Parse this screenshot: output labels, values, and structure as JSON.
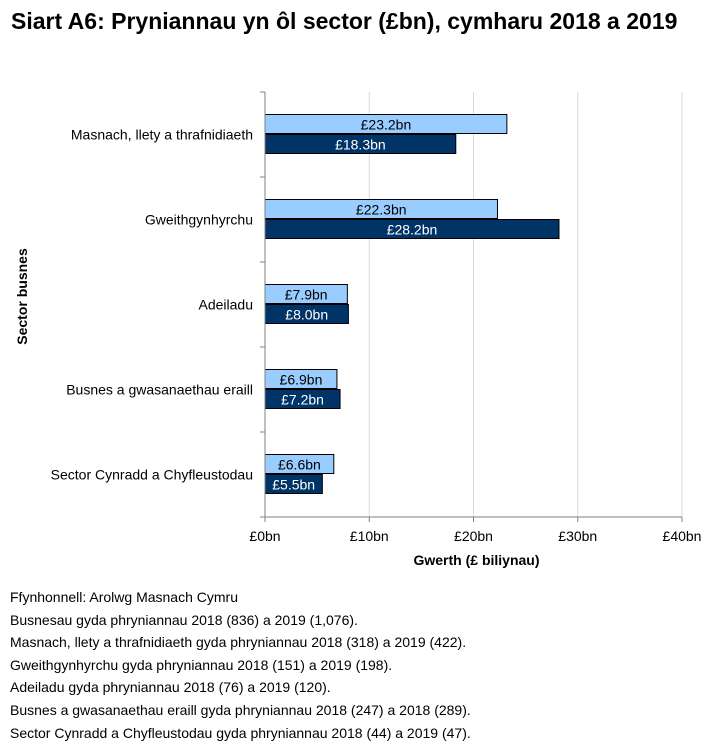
{
  "title": "Siart A6: Pryniannau yn ôl sector (£bn), cymharu 2018 a 2019",
  "colors": {
    "series_2018": "#99ccff",
    "series_2019": "#003366",
    "grid": "#d9d9d9",
    "axis": "#808080"
  },
  "chart_data": {
    "type": "bar",
    "orientation": "horizontal",
    "title": "",
    "xlabel": "Gwerth (£ biliynau)",
    "ylabel": "Sector busnes",
    "xlim": [
      0,
      40
    ],
    "x_ticks": [
      0,
      10,
      20,
      30,
      40
    ],
    "x_tick_labels": [
      "£0bn",
      "£10bn",
      "£20bn",
      "£30bn",
      "£40bn"
    ],
    "grid": true,
    "categories": [
      "Masnach, llety a thrafnidiaeth",
      "Gweithgynhyrchu",
      "Adeiladu",
      "Busnes a gwasanaethau eraill",
      "Sector Cynradd a Chyfleustodau"
    ],
    "series": [
      {
        "name": "2018",
        "values": [
          23.2,
          22.3,
          7.9,
          6.9,
          6.6
        ],
        "labels": [
          "£23.2bn",
          "£22.3bn",
          "£7.9bn",
          "£6.9bn",
          "£6.6bn"
        ]
      },
      {
        "name": "2019",
        "values": [
          18.3,
          28.2,
          8.0,
          7.2,
          5.5
        ],
        "labels": [
          "£18.3bn",
          "£28.2bn",
          "£8.0bn",
          "£7.2bn",
          "£5.5bn"
        ]
      }
    ]
  },
  "notes": [
    "Ffynhonnell: Arolwg Masnach Cymru",
    "Busnesau gyda phryniannau 2018 (836) a 2019 (1,076).",
    "Masnach, llety a thrafnidiaeth gyda phryniannau 2018 (318) a 2019 (422).",
    "Gweithgynhyrchu gyda phryniannau 2018 (151) a 2019 (198).",
    "Adeiladu gyda phryniannau 2018 (76) a 2019 (120).",
    "Busnes a gwasanaethau eraill gyda phryniannau 2018 (247) a 2018 (289).",
    "Sector Cynradd a Chyfleustodau gyda phryniannau 2018 (44) a 2019 (47)."
  ]
}
